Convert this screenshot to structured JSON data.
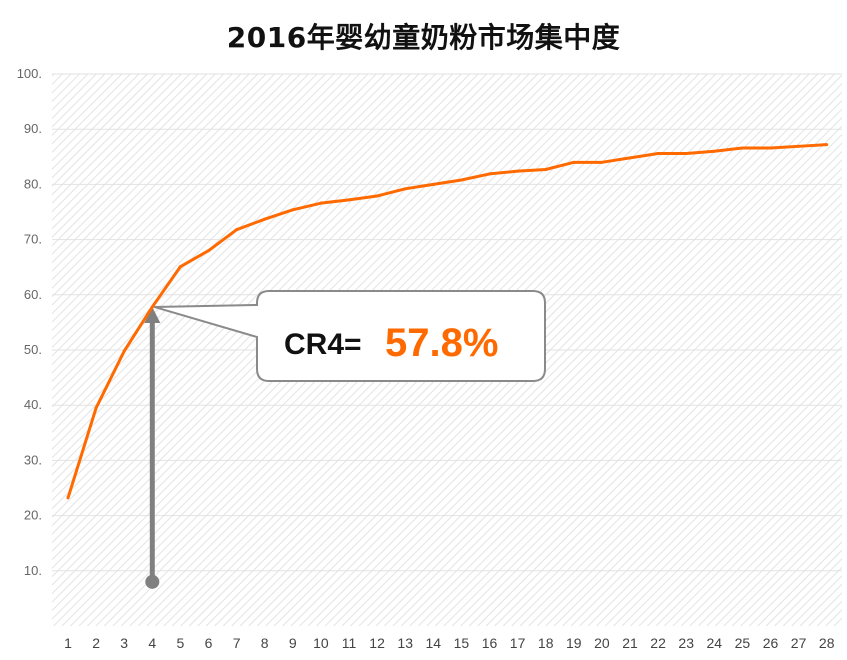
{
  "chart_data": {
    "type": "line",
    "title": "2016年婴幼童奶粉市场集中度",
    "xlabel": "",
    "ylabel": "",
    "x": [
      1,
      2,
      3,
      4,
      5,
      6,
      7,
      8,
      9,
      10,
      11,
      12,
      13,
      14,
      15,
      16,
      17,
      18,
      19,
      20,
      21,
      22,
      23,
      24,
      25,
      26,
      27,
      28
    ],
    "series": [
      {
        "values": [
          23.2,
          39.5,
          49.8,
          57.8,
          65.1,
          68.0,
          71.8,
          73.7,
          75.4,
          76.6,
          77.2,
          77.9,
          79.2,
          80.0,
          80.8,
          81.9,
          82.4,
          82.7,
          84.0,
          84.0,
          84.8,
          85.6,
          85.6,
          86.0,
          86.6,
          86.6,
          86.9,
          87.2
        ]
      }
    ],
    "ylim": [
      0,
      100
    ],
    "yticks": [
      "",
      "10.",
      "20.",
      "30.",
      "40.",
      "50.",
      "60.",
      "70.",
      "80.",
      "90.",
      "100."
    ],
    "xticks": [
      "1",
      "2",
      "3",
      "4",
      "5",
      "6",
      "7",
      "8",
      "9",
      "10",
      "11",
      "12",
      "13",
      "14",
      "15",
      "16",
      "17",
      "18",
      "19",
      "20",
      "21",
      "22",
      "23",
      "24",
      "25",
      "26",
      "27",
      "28"
    ],
    "grid": true,
    "annotation": {
      "label": "CR4=",
      "value": "57.8%",
      "x": 4,
      "y": 57.8,
      "arrow_from_y": 8
    }
  },
  "colors": {
    "line": "#ff6a00",
    "callout_value": "#ff6a00",
    "arrow": "#808080",
    "grid": "#e2e2e2",
    "hatch": "#e4e4e4"
  }
}
